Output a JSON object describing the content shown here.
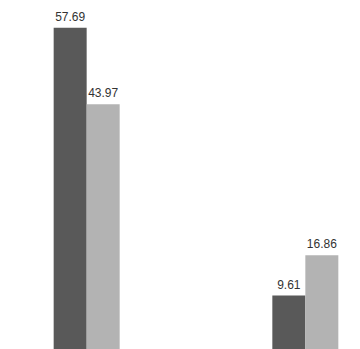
{
  "chart_data": {
    "type": "bar",
    "categories": [
      null,
      null,
      null
    ],
    "series": [
      {
        "color": "#595959",
        "values": [
          57.69,
          null,
          9.61
        ]
      },
      {
        "color": "#b3b3b3",
        "values": [
          43.97,
          null,
          16.86
        ]
      }
    ],
    "ylim": [
      0,
      60
    ],
    "yticks": [
      0,
      60
    ],
    "grid": false,
    "data_labels": true,
    "tick_labels": false
  }
}
